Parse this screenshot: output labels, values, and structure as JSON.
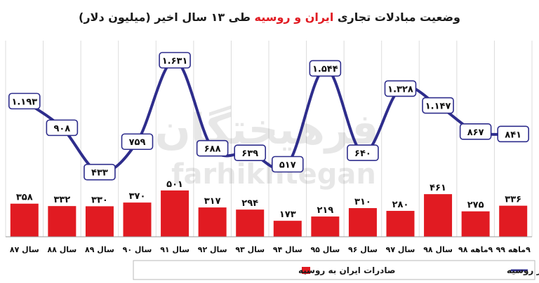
{
  "title_prefix": "وضعیت مبادلات تجاری",
  "title_highlight": "ایران و روسیه",
  "title_suffix": "طی ۱۳ سال اخیر (میلیون دلار)",
  "watermark_fa": "فرهیختگان",
  "watermark_en": "farhikhtegan",
  "colors": {
    "bar": "#e11b22",
    "line": "#2e2d8c",
    "grid": "#dcdcdc",
    "title": "#1a1a1a",
    "highlight": "#e11b22"
  },
  "chart_data": {
    "type": "bar",
    "title": "وضعیت مبادلات تجاری ایران و روسیه طی ۱۳ سال اخیر (میلیون دلار)",
    "categories": [
      "سال ۸۷",
      "سال ۸۸",
      "سال ۸۹",
      "سال ۹۰",
      "سال ۹۱",
      "سال ۹۲",
      "سال ۹۳",
      "سال ۹۴",
      "سال ۹۵",
      "سال ۹۶",
      "سال ۹۷",
      "سال ۹۸",
      "۹ماهه ۹۸",
      "۹ماهه ۹۹"
    ],
    "series": [
      {
        "name": "صادرات ایران به روسیه",
        "type": "bar",
        "values": [
          358,
          332,
          330,
          370,
          501,
          317,
          294,
          173,
          219,
          310,
          280,
          461,
          275,
          336
        ],
        "labels": [
          "۳۵۸",
          "۳۳۲",
          "۳۳۰",
          "۳۷۰",
          "۵۰۱",
          "۳۱۷",
          "۲۹۴",
          "۱۷۳",
          "۲۱۹",
          "۳۱۰",
          "۲۸۰",
          "۴۶۱",
          "۲۷۵",
          "۳۳۶"
        ]
      },
      {
        "name": "واردات ایران از روسیه",
        "type": "line",
        "values": [
          1193,
          908,
          433,
          759,
          1631,
          688,
          639,
          517,
          1544,
          640,
          1328,
          1147,
          867,
          841
        ],
        "labels": [
          "۱.۱۹۳",
          "۹۰۸",
          "۴۳۳",
          "۷۵۹",
          "۱.۶۳۱",
          "۶۸۸",
          "۶۳۹",
          "۵۱۷",
          "۱.۵۴۴",
          "۶۴۰",
          "۱.۳۲۸",
          "۱.۱۴۷",
          "۸۶۷",
          "۸۴۱"
        ]
      }
    ],
    "legend_position": "bottom",
    "grid": "vertical"
  }
}
